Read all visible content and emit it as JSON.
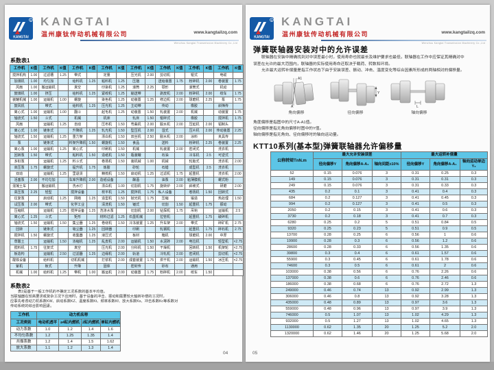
{
  "brand": {
    "name": "KANGTAI",
    "company": "温州康钛传动机械有限公司",
    "website": "www.kangtailzq.com",
    "tagline": "Wenzhou Kangtai Transmission Machinery Co.,Ltd"
  },
  "left_page": {
    "page_number": "04",
    "table1_title": "系数表1",
    "table1": {
      "header_pair": [
        "工作机",
        "K值"
      ],
      "pairs": 8,
      "rows": [
        [
          "搅拌机构",
          "1.00",
          "过滤槽",
          "1.25",
          "带式",
          "",
          "定量",
          "",
          "压光机",
          "2.00",
          "剪切机",
          "",
          "辊式",
          "",
          "电缆",
          ""
        ],
        [
          "加煤机",
          "1.00",
          "均匀加",
          "",
          "给料机",
          "1.25",
          "粘料机",
          "1.25",
          "压捆",
          "",
          "送给装置",
          "1.75",
          "粉碎机",
          "2.00",
          "卷装置",
          "1.75"
        ],
        [
          "风扇",
          "1.00",
          "搬运输机",
          "",
          "真空",
          "",
          "印染机",
          "1.25",
          "滚筒",
          "2.25",
          "颚形",
          "",
          "滚筒式",
          "",
          "机动",
          ""
        ],
        [
          "鼓煤机",
          "1.00",
          "挤压",
          "",
          "给料机",
          "1.25",
          "紧绞机",
          "1.25",
          "输送带",
          "",
          "剥皮机",
          "2.00",
          "粉碎机",
          "2.00",
          "绞车",
          "1.75"
        ],
        [
          "装罐机械",
          "1.00",
          "运输机",
          "1.00",
          "螺旋",
          "",
          "染色机",
          "1.25",
          "动装置",
          "1.25",
          "修边机",
          "2.00",
          "球磨机",
          "2.25",
          "泵",
          "1.75"
        ],
        [
          "鼓风机",
          "",
          "带式",
          "",
          "给料机",
          "1.25",
          "压光机",
          "1.25",
          "主动带",
          "",
          "传动",
          "",
          "橡胶",
          "",
          "斜筛传",
          ""
        ],
        [
          "离心式",
          "1.00",
          "运输机",
          "1.00",
          "翻斗",
          "",
          "起毛机",
          "1.25",
          "动装置",
          "1.50",
          "轧装置",
          "2.00",
          "机械",
          "",
          "动装置",
          "1.75"
        ],
        [
          "轴流式",
          "1.50",
          "斗式",
          "",
          "机械",
          "",
          "机床",
          "",
          "轧床",
          "1.50",
          "辊碎式",
          "",
          "橡胶",
          "",
          "搅拌机",
          "1.75"
        ],
        [
          "风扇",
          "",
          "运输机",
          "1.25",
          "自动",
          "",
          "压布机",
          "1.50",
          "弯曲机",
          "2.00",
          "脱水机",
          "2.00",
          "压延机",
          "2.00",
          "铝制头",
          ""
        ],
        [
          "离心式",
          "1.00",
          "链条式",
          "",
          "升降机",
          "1.25",
          "轧光机",
          "1.50",
          "型压机",
          "2.00",
          "湿式",
          "",
          "压片机",
          "2.00",
          "传动装置",
          "2.25"
        ],
        [
          "轴流式",
          "1.50",
          "运输机",
          "1.25",
          "重力架",
          "",
          "漂白机",
          "1.50",
          "双丝机",
          "2.50",
          "脱水机",
          "2.00",
          "涂料",
          "",
          "夹具传",
          ""
        ],
        [
          "泵",
          "",
          "链条式",
          "",
          "料架升降机",
          "1.50",
          "螺旋机",
          "1.50",
          "食品",
          "",
          "送料",
          "",
          "粉碎机",
          "2.25",
          "卷装置",
          "2.25"
        ],
        [
          "离心泵",
          "1.00",
          "运输机",
          "1.25",
          "离心式",
          "",
          "印刷机",
          "1.50",
          "机械",
          "",
          "轧装置",
          "2.00",
          "密闭式",
          "",
          "洗衣机",
          ""
        ],
        [
          "回转泵",
          "1.50",
          "带式",
          "",
          "粘料机",
          "1.50",
          "造纸机",
          "1.50",
          "瓶装罐",
          "",
          "石油",
          "",
          "冷冻机",
          "2.5",
          "可逆式",
          ""
        ],
        [
          "多缸泵",
          "",
          "运输机",
          "1.25",
          "料斗式",
          "",
          "卷扬机",
          "1.50",
          "装机械",
          "1.00",
          "机械",
          "",
          "轮胎式",
          "",
          "洗衣机",
          "2.00"
        ],
        [
          "高压泵",
          "1.75",
          "螺旋式",
          "",
          "提升机",
          "1.75",
          "炼胶",
          "",
          "砂轮",
          "",
          "石蜡",
          "",
          "成型机",
          "2.5",
          "洗衣机",
          ""
        ],
        [
          "双动",
          "",
          "运输机",
          "1.25",
          "里退货",
          "",
          "精梳机",
          "1.50",
          "启动机",
          "1.25",
          "过滤机",
          "1.75",
          "起重机",
          "",
          "洗衣机",
          "2.00"
        ],
        [
          "活塞泵",
          "2.00",
          "不均匀加",
          "",
          "车库升降机",
          "2.00",
          "造纸设备",
          "",
          "酿酒",
          "",
          "油泵",
          "2.00",
          "粘薄膜机",
          "",
          "螺式粉",
          ""
        ],
        [
          "混凝土车",
          "",
          "搬运输机",
          "",
          "洗水灯",
          "",
          "漂白机",
          "1.00",
          "切割机",
          "1.75",
          "旋转炉",
          "2.00",
          "斜坡式",
          "",
          "研磨",
          "2.00"
        ],
        [
          "高压泵",
          "2.25",
          "轻型",
          "",
          "搅拌设备",
          "",
          "校平机",
          "1.25",
          "搅拌机",
          "1.75",
          "私人设备",
          "",
          "卷扬机",
          "1.50",
          "回转式",
          ""
        ],
        [
          "往复泵",
          "",
          "启动机",
          "1.25",
          "网络",
          "1.25",
          "造型机",
          "1.50",
          "抛光机",
          "1.75",
          "压缩",
          "",
          "锻造",
          "",
          "热处理",
          "1.50"
        ],
        [
          "试压泵",
          "2.00",
          "带式",
          "",
          "化学工业",
          "",
          "清洗机",
          "1.50",
          "锤式",
          "",
          "切割",
          "1.50",
          "起重机",
          "1.75",
          "振动",
          ""
        ],
        [
          "压缩机",
          "",
          "运输机",
          "1.25",
          "搅拌设备",
          "1.25",
          "洗涤水泵",
          "",
          "切割机",
          "2.00",
          "钻探机",
          "1.75",
          "吊钩",
          "",
          "运输机",
          "2.5"
        ],
        [
          "离心式",
          "1.25",
          "斗式",
          "",
          "矩形",
          "",
          "材料过滤",
          "1.25",
          "石墨机械",
          "",
          "拉管机",
          "",
          "起重机",
          "1.75",
          "破碎机",
          ""
        ],
        [
          "轴流式",
          "1.50",
          "运输机",
          "1.50",
          "集尘器",
          "1.25",
          "卷绕机",
          "1.50",
          "冷冻装置",
          "1.25",
          "升车架",
          "2.00",
          "带式",
          "",
          "碎矿机",
          "2.75"
        ],
        [
          "回转",
          "",
          "链条式",
          "",
          "吸尘器",
          "1.25",
          "回转器",
          "",
          "印刷",
          "",
          "轧钢机",
          "",
          "起重机",
          "1.75",
          "碎石机",
          "2.75"
        ],
        [
          "搅拌机",
          "1.50",
          "螺旋式",
          "",
          "收集器",
          "1.25",
          "液压式",
          "",
          "板材",
          "",
          "箱机",
          "",
          "球磨机",
          "2.00",
          "中厚",
          ""
        ],
        [
          "草酸土",
          "",
          "运输机",
          "1.50",
          "浓缩机",
          "1.25",
          "乱皮机",
          "2.00",
          "运输机",
          "1.50",
          "水泥砖",
          "2.00",
          "电拉机",
          "",
          "轻型机",
          "×2.75"
        ],
        [
          "搅料机",
          "1.75",
          "往复式",
          "",
          "真空",
          "",
          "压光机",
          "2.00",
          "分科机",
          "1.50",
          "干燥机",
          "",
          "回转机",
          "1.50",
          "机架轮",
          "×2.75"
        ],
        [
          "板造构",
          "",
          "运输机",
          "2.50",
          "过滤器",
          "1.25",
          "边缘机",
          "2.00",
          "轨道",
          "",
          "冷轧机",
          "2.00",
          "密闭机",
          "",
          "剪切机",
          "×2.75"
        ],
        [
          "酸铁设备",
          "",
          "给料机",
          "",
          "切机机械",
          "",
          "打浆机",
          "2.00",
          "成套装置",
          "1.75",
          "烘干机",
          "2.00",
          "运输机",
          "1.50",
          "冰压机",
          "×2.75"
        ],
        [
          "紫机",
          "",
          "板式",
          "",
          "升降",
          "",
          "固体",
          "",
          "密封传",
          "",
          "砂石",
          "",
          "通用",
          "",
          "",
          ""
        ],
        [
          "机械",
          "1.00",
          "给料机",
          "1.25",
          "带机",
          "1.00",
          "搬运机",
          "2.00",
          "动装置",
          "1.75",
          "粉碎机",
          "2.00",
          "绞车",
          "1.50",
          "",
          ""
        ]
      ]
    },
    "table2_title": "系数表2",
    "table2_notes": [
      "表2是基于一般工作机的不确定工况系数的基本平均值。",
      "当联轴器在较高要求或复杂工况下应用时，基于设备的冲击、振动和需要较大轴转补偿的工况时，",
      "应事先考虑动力机系数KW、启动系数KZ、温度系数Kt、频率系数Kf、放大系数Ks、冲击系数Kc等系数对",
      "传动系统的综合影响因素。"
    ],
    "table2": {
      "corner": "工作机",
      "group": "动力机名称",
      "row2": [
        "工况类别",
        "电动机透平",
        "≥4缸内燃机",
        "2缸内燃机",
        "单缸内燃机"
      ],
      "rows": [
        [
          "动力系数",
          "1.0",
          "1.2",
          "1.4",
          "1.6"
        ],
        [
          "不均匀系数",
          "1.2",
          "1.25",
          "1.35",
          "1.4"
        ],
        [
          "共振系数",
          "1.2",
          "1.4",
          "1.5",
          "1.62"
        ],
        [
          "放大系数",
          "1.1",
          "1.2",
          "1.3",
          "1.4"
        ]
      ]
    }
  },
  "right_page": {
    "page_number": "05",
    "title": "弹簧联轴器安装对中的允许误差",
    "intro": [
      "联轴器在安装中精确找到对中误差最小时，使用寿命也就最长及维护要求也最低，联轴器在工作中应保证其精确对中",
      "误差在允许的最大范围内，联轴器的实际使用寿命还取决于载荷、转数和环境。",
      "允许最大运转补偿量是指工作状态下由于安装误差、振动、冲击、温度变化等综合因素所形成的两轴相对的偏移量。"
    ],
    "diagrams": {
      "angular_caption": "角向偏移",
      "radial_caption": "径向偏移",
      "axial_caption": "轴向偏移",
      "angular_top_label": "A1",
      "angular_bottom_label": "A",
      "radial_label": "Y",
      "axial_label": "L"
    },
    "notes": [
      "角度偏移是指图中的尺寸A-A1值。",
      "径向偏移是指无角向偏移时图中的Y值。",
      "轴向偏移是指无角向、径向偏移时的轴向运动量。"
    ],
    "section_title": "KTT10系列(基本型)弹簧联轴器允许偏移量",
    "offset_table": {
      "col1": "公称转矩TnN.m",
      "group1": "最大允许安装误差",
      "group2": "最大运转补偿量",
      "sub": [
        "径向偏移Y",
        "角向偏移A-A₁",
        "轴向间距±10%",
        "径向偏移Y",
        "角向偏移A-A₁",
        "轴向运动单边Y₂"
      ],
      "rows": [
        [
          "52",
          "0.15",
          "0.076",
          "3",
          "0.31",
          "0.25",
          "0.3"
        ],
        [
          "149",
          "0.15",
          "0.076",
          "3",
          "0.31",
          "0.31",
          "0.3"
        ],
        [
          "249",
          "0.15",
          "0.076",
          "3",
          "0.31",
          "0.33",
          "0.3"
        ],
        [
          "435",
          "0.2",
          "0.1",
          "3",
          "0.41",
          "0.4",
          "0.3"
        ],
        [
          "684",
          "0.2",
          "0.127",
          "3",
          "0.41",
          "0.45",
          "0.3"
        ],
        [
          "994",
          "0.2",
          "0.127",
          "3",
          "0.41",
          "0.5",
          "0.3"
        ],
        [
          "2050",
          "0.2",
          "0.15",
          "3",
          "0.41",
          "0.6",
          "0.3"
        ],
        [
          "3730",
          "0.2",
          "0.18",
          "3",
          "0.41",
          "0.7",
          "0.3"
        ],
        [
          "6280",
          "0.25",
          "0.2",
          "5",
          "0.51",
          "0.84",
          "0.5"
        ],
        [
          "9320",
          "0.25",
          "0.23",
          "5",
          "0.51",
          "0.9",
          "0.5"
        ],
        [
          "13700",
          "0.28",
          "0.25",
          "6",
          "0.56",
          "1",
          "0.6"
        ],
        [
          "19900",
          "0.28",
          "0.3",
          "6",
          "0.56",
          "1.2",
          "0.6"
        ],
        [
          "28600",
          "0.28",
          "0.33",
          "6",
          "0.56",
          "1.35",
          "0.6"
        ],
        [
          "39800",
          "0.3",
          "0.4",
          "6",
          "0.61",
          "1.57",
          "0.6"
        ],
        [
          "55900",
          "0.3",
          "0.45",
          "6",
          "0.61",
          "1.78",
          "0.6"
        ],
        [
          "74600",
          "0.3",
          "0.5",
          "6",
          "0.61",
          "2",
          "0.6"
        ],
        [
          "103000",
          "0.38",
          "0.56",
          "6",
          "0.76",
          "2.26",
          "0.6"
        ],
        [
          "137000",
          "0.38",
          "0.6",
          "6",
          "0.76",
          "2.46",
          "0.6"
        ],
        [
          "186000",
          "0.38",
          "0.68",
          "6",
          "0.76",
          "2.72",
          "1.3"
        ],
        [
          "249000",
          "0.46",
          "0.74",
          "13",
          "0.92",
          "2.99",
          "1.3"
        ],
        [
          "306000",
          "0.46",
          "0.8",
          "13",
          "0.92",
          "3.28",
          "1.3"
        ],
        [
          "435000",
          "0.48",
          "0.89",
          "13",
          "0.97",
          "3.6",
          "1.3"
        ],
        [
          "559000",
          "0.48",
          "0.96",
          "13",
          "0.97",
          "3.9",
          "1.3"
        ],
        [
          "746000",
          "0.5",
          "1.07",
          "13",
          "1.02",
          "4.29",
          "1.3"
        ],
        [
          "932000",
          "0.5",
          "1.27",
          "13",
          "1.02",
          "4.65",
          "1.3"
        ],
        [
          "1130000",
          "0.62",
          "1.35",
          "20",
          "1.25",
          "5.2",
          "2.0"
        ],
        [
          "1320000",
          "0.62",
          "1.46",
          "20",
          "1.25",
          "5.68",
          "2.0"
        ]
      ]
    }
  },
  "colors": {
    "table_header": "#5cc5e6",
    "table_alt_row": "#cfeaf6",
    "brand_blue": "#1459a6",
    "brand_red": "#c32424",
    "brand_gray": "#8f8f8f"
  }
}
